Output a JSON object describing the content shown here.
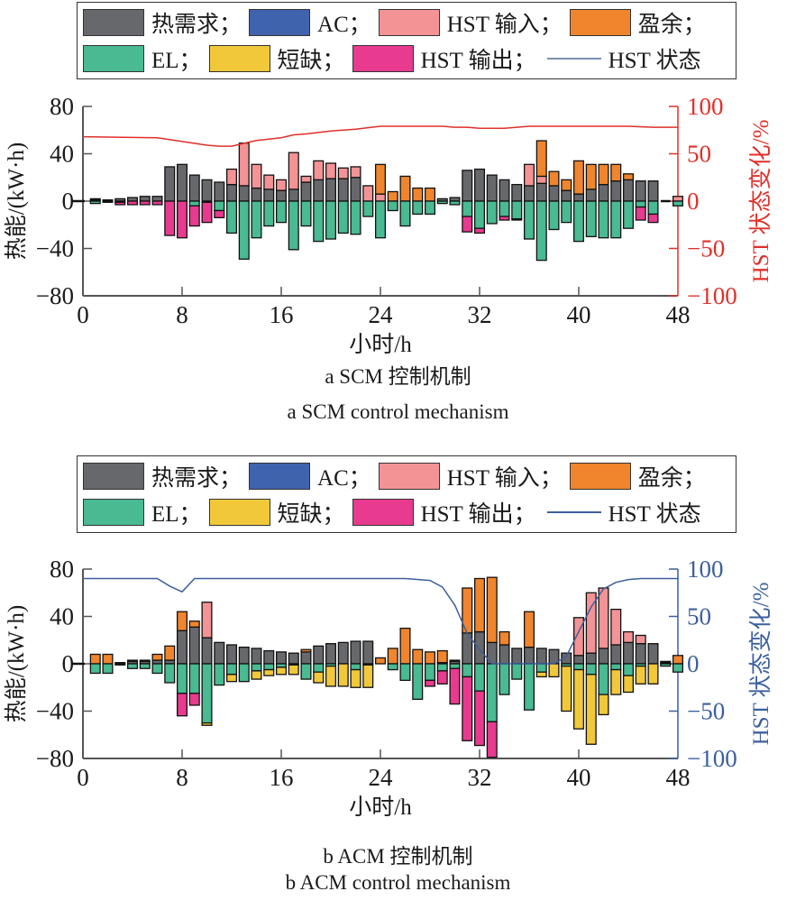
{
  "legend": {
    "items": [
      {
        "label": "热需求；",
        "color": "#67686c",
        "kind": "bar"
      },
      {
        "label": "AC；",
        "color": "#4063ae",
        "kind": "bar"
      },
      {
        "label": "HST 输入；",
        "color": "#f39395",
        "kind": "bar"
      },
      {
        "label": "盈余；",
        "color": "#f0852d",
        "kind": "bar"
      },
      {
        "label": "EL；",
        "color": "#49ba92",
        "kind": "bar"
      },
      {
        "label": "短缺；",
        "color": "#f0c83a",
        "kind": "bar"
      },
      {
        "label": "HST 输出；",
        "color": "#e83a8f",
        "kind": "bar"
      },
      {
        "label": "HST 状态",
        "color": "#7a8fb0",
        "kind": "line"
      }
    ]
  },
  "chart_data": [
    {
      "type": "bar",
      "stacked": true,
      "title": "a  SCM 控制机制",
      "subtitle": "a  SCM control mechanism",
      "xlabel": "小时/h",
      "ylabel": "热能/(kW·h)",
      "y2label": "HST 状态变化/%",
      "xlim": [
        0,
        48
      ],
      "ylim": [
        -80,
        80
      ],
      "y2lim": [
        -100,
        100
      ],
      "xticks": [
        0,
        8,
        16,
        24,
        32,
        40,
        48
      ],
      "yticks": [
        -80,
        -40,
        0,
        40,
        80
      ],
      "y2ticks": [
        -100,
        -50,
        0,
        50,
        100
      ],
      "accent": "#e0302a",
      "x": [
        1,
        2,
        3,
        4,
        5,
        6,
        7,
        8,
        9,
        10,
        11,
        12,
        13,
        14,
        15,
        16,
        17,
        18,
        19,
        20,
        21,
        22,
        23,
        24,
        25,
        26,
        27,
        28,
        29,
        30,
        31,
        32,
        33,
        34,
        35,
        36,
        37,
        38,
        39,
        40,
        41,
        42,
        43,
        44,
        45,
        46,
        47,
        48
      ],
      "series": [
        {
          "name": "热需求",
          "color": "#67686c",
          "values": [
            1,
            1,
            2,
            3,
            4,
            4,
            29,
            31,
            22,
            18,
            16,
            14,
            13,
            11,
            10,
            9,
            10,
            16,
            18,
            19,
            19,
            20,
            0,
            0,
            0,
            0,
            0,
            0,
            2,
            3,
            26,
            27,
            22,
            18,
            14,
            13,
            15,
            13,
            9,
            6,
            10,
            14,
            17,
            18,
            17,
            17,
            0,
            0
          ]
        },
        {
          "name": "HST 输入",
          "color": "#f39395",
          "values": [
            1,
            0,
            0,
            0,
            0,
            0,
            0,
            0,
            0,
            0,
            0,
            13,
            36,
            20,
            12,
            9,
            31,
            5,
            16,
            13,
            9,
            9,
            13,
            6,
            0,
            0,
            0,
            0,
            0,
            0,
            0,
            0,
            0,
            0,
            0,
            18,
            6,
            0,
            0,
            0,
            0,
            0,
            0,
            0,
            0,
            0,
            0,
            4
          ]
        },
        {
          "name": "盈余",
          "color": "#f0852d",
          "values": [
            0,
            0,
            0,
            0,
            0,
            0,
            0,
            0,
            0,
            0,
            0,
            0,
            0,
            0,
            0,
            0,
            0,
            0,
            0,
            0,
            0,
            0,
            0,
            25,
            8,
            21,
            11,
            11,
            0,
            0,
            0,
            0,
            0,
            0,
            0,
            0,
            30,
            12,
            9,
            28,
            21,
            17,
            14,
            5,
            0,
            0,
            0,
            0
          ]
        },
        {
          "name": "EL",
          "color": "#49ba92",
          "values": [
            -2,
            0,
            -1,
            0,
            0,
            0,
            0,
            0,
            -4,
            -1,
            -8,
            -27,
            -49,
            -31,
            -21,
            -18,
            -41,
            -21,
            -34,
            -32,
            -27,
            -28,
            -13,
            -31,
            -8,
            -21,
            -11,
            -11,
            -2,
            -3,
            -13,
            -23,
            -19,
            -13,
            -15,
            -32,
            -50,
            -24,
            -18,
            -34,
            -30,
            -31,
            -31,
            -23,
            -5,
            -11,
            0,
            -4
          ]
        },
        {
          "name": "HST 输出",
          "color": "#e83a8f",
          "values": [
            0,
            -1,
            -2,
            -3,
            -3,
            -3,
            -29,
            -31,
            -17,
            -17,
            -6,
            0,
            0,
            0,
            0,
            0,
            0,
            0,
            0,
            0,
            0,
            0,
            0,
            0,
            0,
            0,
            0,
            0,
            0,
            0,
            -13,
            -4,
            0,
            -3,
            -1,
            0,
            0,
            0,
            0,
            0,
            0,
            0,
            0,
            0,
            -11,
            -7,
            0,
            0
          ]
        },
        {
          "name": "短缺",
          "color": "#f0c83a",
          "values": [
            0,
            0,
            0,
            0,
            0,
            0,
            0,
            0,
            0,
            0,
            0,
            0,
            0,
            0,
            0,
            0,
            0,
            0,
            0,
            0,
            0,
            0,
            0,
            0,
            0,
            0,
            0,
            0,
            0,
            0,
            0,
            0,
            0,
            0,
            0,
            0,
            0,
            0,
            0,
            0,
            0,
            0,
            0,
            0,
            0,
            0,
            0,
            0
          ]
        }
      ],
      "line": {
        "name": "HST 状态",
        "axis": "right",
        "color": "#e0302a",
        "x": [
          0,
          6,
          8,
          10,
          11,
          12,
          13,
          14,
          16,
          17,
          18,
          20,
          22,
          24,
          26,
          28,
          29,
          30,
          31,
          32,
          34,
          36,
          38,
          40,
          42,
          44,
          46,
          48
        ],
        "values": [
          68,
          67,
          63,
          59,
          58,
          58,
          61,
          64,
          67,
          70,
          71,
          74,
          76,
          79,
          79,
          79,
          79,
          78,
          78,
          77,
          77,
          79,
          79,
          79,
          79,
          79,
          78,
          78
        ]
      }
    },
    {
      "type": "bar",
      "stacked": true,
      "title": "b  ACM 控制机制",
      "subtitle": "b  ACM control mechanism",
      "xlabel": "小时/h",
      "ylabel": "热能/(kW·h)",
      "y2label": "HST 状态变化/%",
      "xlim": [
        0,
        48
      ],
      "ylim": [
        -80,
        80
      ],
      "y2lim": [
        -100,
        100
      ],
      "xticks": [
        0,
        8,
        16,
        24,
        32,
        40,
        48
      ],
      "yticks": [
        -80,
        -40,
        0,
        40,
        80
      ],
      "y2ticks": [
        -100,
        -50,
        0,
        50,
        100
      ],
      "accent": "#3c5f9e",
      "x": [
        1,
        2,
        3,
        4,
        5,
        6,
        7,
        8,
        9,
        10,
        11,
        12,
        13,
        14,
        15,
        16,
        17,
        18,
        19,
        20,
        21,
        22,
        23,
        24,
        25,
        26,
        27,
        28,
        29,
        30,
        31,
        32,
        33,
        34,
        35,
        36,
        37,
        38,
        39,
        40,
        41,
        42,
        43,
        44,
        45,
        46,
        47,
        48
      ],
      "series": [
        {
          "name": "热需求",
          "color": "#67686c",
          "values": [
            0,
            0,
            1,
            2,
            2,
            3,
            3,
            28,
            31,
            22,
            18,
            16,
            14,
            13,
            11,
            10,
            9,
            10,
            15,
            17,
            18,
            19,
            19,
            0,
            0,
            0,
            0,
            0,
            1,
            2,
            26,
            27,
            18,
            16,
            13,
            14,
            13,
            12,
            9,
            7,
            9,
            13,
            16,
            18,
            17,
            17,
            1,
            0
          ]
        },
        {
          "name": "HST 输入",
          "color": "#f39395",
          "values": [
            0,
            0,
            0,
            0,
            0,
            0,
            0,
            0,
            0,
            30,
            0,
            0,
            0,
            0,
            0,
            0,
            0,
            0,
            0,
            0,
            0,
            0,
            0,
            0,
            0,
            0,
            0,
            0,
            0,
            0,
            0,
            0,
            0,
            0,
            0,
            0,
            0,
            0,
            0,
            32,
            51,
            51,
            30,
            9,
            7,
            0,
            0,
            0
          ]
        },
        {
          "name": "盈余",
          "color": "#f0852d",
          "values": [
            8,
            8,
            0,
            1,
            1,
            5,
            12,
            16,
            5,
            0,
            0,
            0,
            0,
            0,
            0,
            0,
            0,
            2,
            0,
            0,
            0,
            0,
            0,
            5,
            13,
            30,
            12,
            10,
            10,
            1,
            38,
            45,
            55,
            11,
            0,
            30,
            0,
            0,
            0,
            0,
            0,
            0,
            0,
            0,
            0,
            0,
            1,
            7
          ]
        },
        {
          "name": "EL",
          "color": "#49ba92",
          "values": [
            -8,
            -8,
            -1,
            -4,
            -4,
            -8,
            -16,
            -25,
            -25,
            -50,
            -18,
            -9,
            -15,
            -6,
            -5,
            -3,
            -1,
            -13,
            -7,
            -2,
            0,
            -5,
            -1,
            0,
            -5,
            -14,
            -30,
            -14,
            -6,
            -4,
            -11,
            -23,
            -49,
            -26,
            -13,
            -39,
            -7,
            0,
            -2,
            -5,
            -9,
            -26,
            -5,
            -10,
            -2,
            0,
            -2,
            -7
          ]
        },
        {
          "name": "HST 输出",
          "color": "#e83a8f",
          "values": [
            0,
            0,
            0,
            0,
            0,
            0,
            0,
            -19,
            -10,
            0,
            0,
            0,
            0,
            0,
            0,
            0,
            0,
            0,
            0,
            0,
            0,
            0,
            0,
            0,
            0,
            0,
            0,
            -5,
            -11,
            -30,
            -54,
            -46,
            -30,
            0,
            0,
            0,
            0,
            0,
            0,
            0,
            0,
            0,
            0,
            0,
            0,
            0,
            0,
            0
          ]
        },
        {
          "name": "短缺",
          "color": "#f0c83a",
          "values": [
            0,
            0,
            0,
            0,
            0,
            0,
            0,
            0,
            0,
            -2,
            0,
            -6,
            0,
            -7,
            -5,
            -6,
            -8,
            0,
            -9,
            -17,
            -19,
            -15,
            -19,
            0,
            0,
            0,
            0,
            0,
            0,
            0,
            0,
            0,
            0,
            0,
            0,
            0,
            -4,
            -11,
            -38,
            -50,
            -59,
            -17,
            -21,
            -14,
            -15,
            -17,
            0,
            0
          ]
        }
      ],
      "line": {
        "name": "HST 状态",
        "axis": "right",
        "color": "#3c5f9e",
        "x": [
          0,
          6,
          7,
          8,
          9,
          10,
          24,
          26,
          28,
          29,
          30,
          31,
          32,
          33,
          34,
          38,
          39,
          40,
          41,
          42,
          43,
          44,
          45,
          46,
          48
        ],
        "values": [
          90,
          90,
          82,
          76,
          90,
          90,
          90,
          90,
          88,
          81,
          62,
          32,
          15,
          0,
          0,
          0,
          8,
          34,
          60,
          79,
          86,
          89,
          90,
          90,
          90
        ]
      }
    }
  ]
}
